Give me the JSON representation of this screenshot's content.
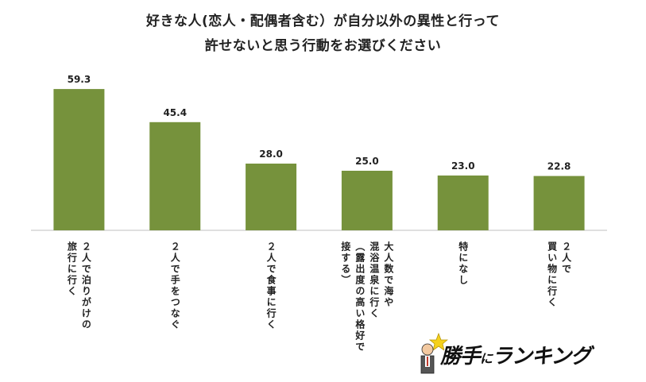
{
  "chart_data": {
    "type": "bar",
    "title_line1": "好きな人(恋人・配偶者含む）が自分以外の異性と行って",
    "title_line2": "許せないと思う行動をお選びください",
    "categories": [
      "２人で泊りがけの\n旅行に行く",
      "２人で手をつなぐ",
      "２人で食事に行く",
      "大人数で海や\n混浴温泉に行く\n（露出度の高い格好で\n接する）",
      "特になし",
      "２人で\n買い物に行く"
    ],
    "values": [
      59.3,
      45.4,
      28.0,
      25.0,
      23.0,
      22.8
    ],
    "value_labels": [
      "59.3",
      "45.4",
      "28.0",
      "25.0",
      "23.0",
      "22.8"
    ],
    "ylim": [
      0,
      60
    ],
    "bar_color": "#76923c",
    "grid": false,
    "legend": "none"
  },
  "logo": {
    "text_a": "勝手",
    "text_ni": "に",
    "text_b": "ランキング",
    "star_color": "#f5d11b"
  }
}
